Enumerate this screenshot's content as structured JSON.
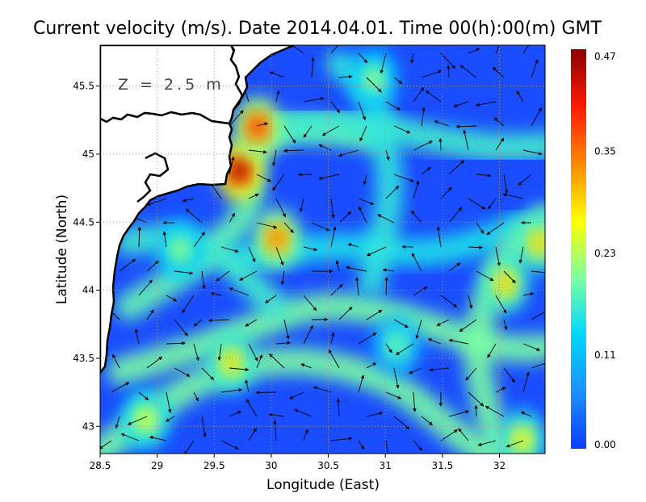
{
  "chart_data": {
    "type": "heatmap",
    "title": "Current velocity (m/s). Date 2014.04.01. Time 00(h):00(m) GMT",
    "annotation": "Z = 2.5 m",
    "xlabel": "Longitude (East)",
    "ylabel": "Latitude (North)",
    "xlim": [
      28.5,
      32.4
    ],
    "ylim": [
      42.8,
      45.8
    ],
    "x_ticks": [
      "28.5",
      "29",
      "29.5",
      "30",
      "30.5",
      "31",
      "31.5",
      "32"
    ],
    "x_tick_values": [
      28.5,
      29,
      29.5,
      30,
      30.5,
      31,
      31.5,
      32
    ],
    "y_ticks": [
      "43",
      "43.5",
      "44",
      "44.5",
      "45",
      "45.5"
    ],
    "y_tick_values": [
      43,
      43.5,
      44,
      44.5,
      45,
      45.5
    ],
    "grid": true,
    "colorbar": {
      "ticks": [
        "0.00",
        "0.11",
        "0.23",
        "0.35",
        "0.47"
      ],
      "tick_values": [
        0,
        0.11,
        0.23,
        0.35,
        0.47
      ],
      "range": [
        0,
        0.47
      ],
      "colors": [
        "#0a3cff",
        "#1e90ff",
        "#00d8ff",
        "#7dffa0",
        "#ffff00",
        "#ff8800",
        "#ff1a00",
        "#8b0000"
      ]
    },
    "colors": {
      "land": "#ffffff",
      "coast": "#000000",
      "grid": "#999999",
      "arrow": "#000000"
    },
    "speed_features": [
      {
        "lon": 29.72,
        "lat": 44.88,
        "speed": 0.47
      },
      {
        "lon": 29.88,
        "lat": 45.2,
        "speed": 0.4
      },
      {
        "lon": 30.05,
        "lat": 44.38,
        "speed": 0.36
      },
      {
        "lon": 32.05,
        "lat": 44.05,
        "speed": 0.3
      },
      {
        "lon": 32.35,
        "lat": 44.35,
        "speed": 0.3
      },
      {
        "lon": 29.65,
        "lat": 43.47,
        "speed": 0.29
      },
      {
        "lon": 28.9,
        "lat": 43.05,
        "speed": 0.26
      },
      {
        "lon": 32.2,
        "lat": 42.9,
        "speed": 0.28
      },
      {
        "lon": 30.9,
        "lat": 45.55,
        "speed": 0.22
      },
      {
        "lon": 29.2,
        "lat": 44.3,
        "speed": 0.22
      },
      {
        "lon": 31.1,
        "lat": 43.6,
        "speed": 0.2
      }
    ]
  }
}
